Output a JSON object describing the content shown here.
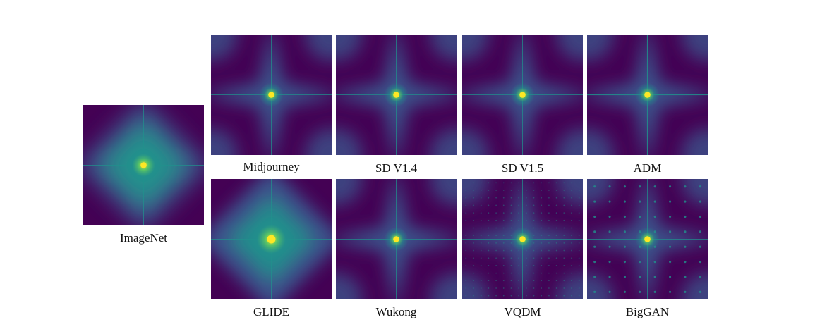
{
  "figure": {
    "panels": [
      {
        "id": "imagenet",
        "label": "ImageNet",
        "style": "diamond",
        "grid": false
      },
      {
        "id": "midjourney",
        "label": "Midjourney",
        "style": "cross",
        "grid": false
      },
      {
        "id": "sd14",
        "label": "SD V1.4",
        "style": "cross",
        "grid": false
      },
      {
        "id": "sd15",
        "label": "SD V1.5",
        "style": "cross",
        "grid": false
      },
      {
        "id": "adm",
        "label": "ADM",
        "style": "cross-sharp",
        "grid": false
      },
      {
        "id": "glide",
        "label": "GLIDE",
        "style": "glow",
        "grid": false
      },
      {
        "id": "wukong",
        "label": "Wukong",
        "style": "cross",
        "grid": false
      },
      {
        "id": "vqdm",
        "label": "VQDM",
        "style": "cross",
        "grid": true
      },
      {
        "id": "biggan",
        "label": "BigGAN",
        "style": "cross",
        "grid": true
      }
    ],
    "colors": {
      "background": "#440154",
      "mid": "#3b528b",
      "teal": "#21918c",
      "green": "#5ec962",
      "center": "#fde725"
    }
  }
}
